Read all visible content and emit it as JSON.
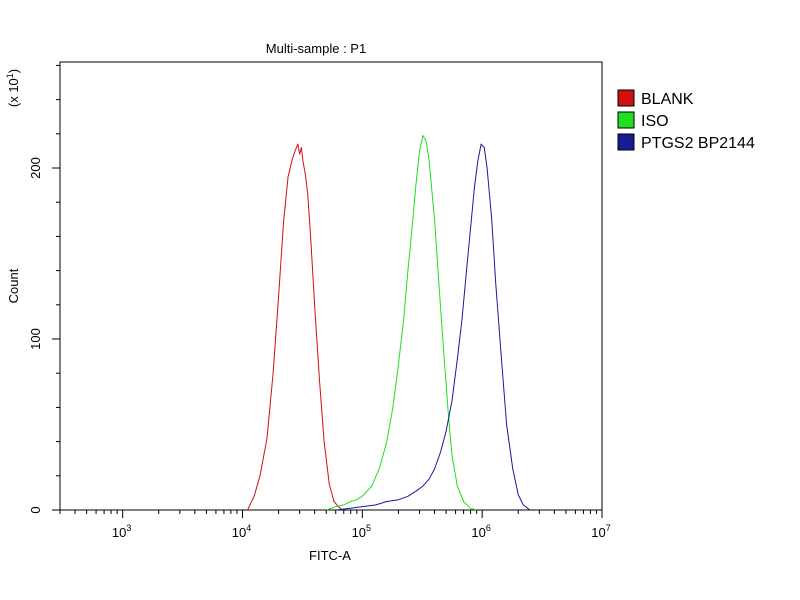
{
  "chart_data": {
    "type": "line",
    "title": "Multi-sample : P1",
    "xlabel": "FITC-A",
    "ylabel": "Count",
    "y_multiplier": {
      "base": "(x 10",
      "exponent": "1",
      "close": ")"
    },
    "xscale": "log",
    "xlim": [
      300,
      10000000
    ],
    "ylim": [
      0,
      262
    ],
    "x_ticks": [
      {
        "value": 1000,
        "base": "10",
        "exp": "3"
      },
      {
        "value": 10000,
        "base": "10",
        "exp": "4"
      },
      {
        "value": 100000,
        "base": "10",
        "exp": "5"
      },
      {
        "value": 1000000,
        "base": "10",
        "exp": "6"
      },
      {
        "value": 10000000,
        "base": "10",
        "exp": "7"
      }
    ],
    "y_ticks": [
      {
        "value": 0,
        "label": "0"
      },
      {
        "value": 100,
        "label": "100"
      },
      {
        "value": 200,
        "label": "200"
      }
    ],
    "grid": false,
    "legend_position": "right",
    "series": [
      {
        "name": "BLANK",
        "color": "#d01010",
        "x": [
          11000,
          12500,
          14000,
          16000,
          18000,
          20000,
          22000,
          24000,
          26000,
          27500,
          29000,
          30000,
          31000,
          32000,
          33500,
          35000,
          37000,
          40000,
          44000,
          48000,
          53000,
          58000,
          63000,
          68000
        ],
        "y": [
          0,
          8,
          20,
          42,
          80,
          125,
          168,
          195,
          205,
          210,
          214,
          208,
          212,
          204,
          196,
          185,
          160,
          120,
          75,
          40,
          15,
          5,
          2,
          0
        ]
      },
      {
        "name": "ISO",
        "color": "#22dd22",
        "x": [
          50000,
          60000,
          70000,
          80000,
          90000,
          100000,
          120000,
          140000,
          160000,
          180000,
          200000,
          220000,
          240000,
          260000,
          280000,
          300000,
          320000,
          340000,
          360000,
          400000,
          440000,
          480000,
          520000,
          560000,
          620000,
          700000,
          800000,
          900000
        ],
        "y": [
          0,
          2,
          3,
          5,
          6,
          8,
          14,
          25,
          40,
          60,
          85,
          110,
          140,
          165,
          190,
          210,
          219,
          216,
          205,
          170,
          128,
          90,
          58,
          32,
          14,
          5,
          1,
          0
        ]
      },
      {
        "name": "PTGS2 BP2144",
        "color": "#1a1a99",
        "x": [
          60000,
          80000,
          100000,
          130000,
          160000,
          200000,
          240000,
          280000,
          320000,
          360000,
          400000,
          450000,
          500000,
          560000,
          620000,
          680000,
          740000,
          800000,
          860000,
          920000,
          980000,
          1040000,
          1100000,
          1200000,
          1300000,
          1450000,
          1600000,
          1800000,
          2000000,
          2200000,
          2500000
        ],
        "y": [
          0,
          1,
          2,
          3,
          5,
          6,
          8,
          11,
          14,
          18,
          24,
          34,
          46,
          64,
          88,
          112,
          140,
          165,
          188,
          204,
          214,
          212,
          200,
          170,
          132,
          88,
          50,
          24,
          9,
          3,
          0
        ]
      }
    ]
  }
}
